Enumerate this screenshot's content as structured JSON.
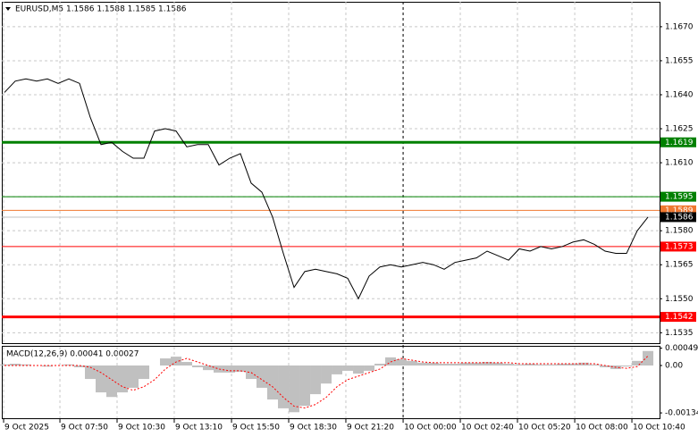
{
  "chart_data": [
    {
      "type": "line",
      "title": "EURUSD,M5  1.1586 1.1588 1.1585 1.1586",
      "series": [
        {
          "name": "EURUSD",
          "color": "#000000",
          "values": [
            1.1641,
            1.1646,
            1.1647,
            1.1646,
            1.1647,
            1.1645,
            1.1647,
            1.1645,
            1.163,
            1.1618,
            1.1619,
            1.1615,
            1.1612,
            1.1612,
            1.1624,
            1.1625,
            1.1624,
            1.1617,
            1.1618,
            1.1618,
            1.1609,
            1.1612,
            1.1614,
            1.1601,
            1.1597,
            1.1586,
            1.157,
            1.1555,
            1.1562,
            1.1563,
            1.1562,
            1.1561,
            1.1559,
            1.155,
            1.156,
            1.1564,
            1.1565,
            1.1564,
            1.1565,
            1.1566,
            1.1565,
            1.1563,
            1.1566,
            1.1567,
            1.1568,
            1.1571,
            1.1569,
            1.1567,
            1.1572,
            1.1571,
            1.1573,
            1.1572,
            1.1573,
            1.1575,
            1.1576,
            1.1574,
            1.1571,
            1.157,
            1.157,
            1.158,
            1.1586
          ]
        }
      ],
      "levels": [
        {
          "value": 1.1619,
          "color": "#008000"
        },
        {
          "value": 1.1595,
          "color": "#008000"
        },
        {
          "value": 1.1589,
          "color": "#f07830"
        },
        {
          "value": 1.1586,
          "color": "#000000"
        },
        {
          "value": 1.1573,
          "color": "#ff0000"
        },
        {
          "value": 1.1542,
          "color": "#ff0000"
        }
      ],
      "xlim": [
        -0.25,
        61.08
      ],
      "xticks": [
        {
          "value": -0.08,
          "label": "9 Oct 2025"
        },
        {
          "value": 5.17,
          "label": "9 Oct 07:50"
        },
        {
          "value": 10.5,
          "label": "9 Oct 10:30"
        },
        {
          "value": 15.83,
          "label": "9 Oct 13:10"
        },
        {
          "value": 21.17,
          "label": "9 Oct 15:50"
        },
        {
          "value": 26.5,
          "label": "9 Oct 18:30"
        },
        {
          "value": 31.83,
          "label": "9 Oct 21:20"
        },
        {
          "value": 37.17,
          "label": "10 Oct 00:00"
        },
        {
          "value": 42.5,
          "label": "10 Oct 02:40"
        },
        {
          "value": 47.83,
          "label": "10 Oct 05:20"
        },
        {
          "value": 53.17,
          "label": "10 Oct 08:00"
        },
        {
          "value": 58.5,
          "label": "10 Oct 10:40"
        }
      ],
      "ylim": [
        1.153,
        1.1681
      ],
      "yticks": [
        1.1535,
        {
          "value": 1.155,
          "label": "1.1550"
        },
        1.1565,
        {
          "value": 1.158,
          "label": "1.1580"
        },
        1.1595,
        {
          "value": 1.161,
          "label": "1.1610"
        },
        1.1625,
        {
          "value": 1.164,
          "label": "1.1640"
        },
        1.1655,
        {
          "value": 1.167,
          "label": "1.1670"
        }
      ],
      "grid": true
    },
    {
      "type": "macd",
      "title": "MACD(12,26,9) 0.00041 0.00027",
      "series": [
        {
          "name": "MACD",
          "color": "#c0c0c0",
          "values": [
            3e-05,
            5e-05,
            3e-05,
            0,
            -3e-05,
            0,
            3e-05,
            -5e-05,
            -0.00038,
            -0.00076,
            -0.00089,
            -0.00076,
            -0.00063,
            -0.00038,
            0,
            0.0002,
            0.00025,
            0.0001,
            -5e-05,
            -0.00013,
            -0.0002,
            -0.0002,
            -0.00018,
            -0.00038,
            -0.00063,
            -0.00096,
            -0.00121,
            -0.00132,
            -0.00114,
            -0.00081,
            -0.00051,
            -0.00025,
            -0.00015,
            -0.00023,
            -0.00015,
            5e-05,
            0.00023,
            0.00018,
            0.00013,
            8e-05,
            8e-05,
            5e-05,
            5e-05,
            8e-05,
            8e-05,
            0.0001,
            8e-05,
            5e-05,
            3e-05,
            5e-05,
            3e-05,
            3e-05,
            5e-05,
            5e-05,
            8e-05,
            3e-05,
            -5e-05,
            -0.0001,
            -3e-05,
            0.00013,
            0.00041
          ]
        },
        {
          "name": "Signal",
          "color": "#ff0000",
          "values": [
            0,
            0,
            0,
            0,
            0,
            0,
            0,
            0,
            -5e-05,
            -0.0002,
            -0.0004,
            -0.0006,
            -0.0007,
            -0.0006,
            -0.0004,
            -0.0001,
            0.0001,
            0.0002,
            0.0001,
            0,
            -0.0001,
            -0.00015,
            -0.00015,
            -0.0002,
            -0.0004,
            -0.0006,
            -0.0009,
            -0.00115,
            -0.0012,
            -0.0011,
            -0.0009,
            -0.0006,
            -0.0004,
            -0.0003,
            -0.0002,
            -0.0001,
            0.0001,
            0.0002,
            0.00015,
            0.0001,
            8e-05,
            8e-05,
            8e-05,
            8e-05,
            8e-05,
            8e-05,
            8e-05,
            8e-05,
            5e-05,
            5e-05,
            5e-05,
            5e-05,
            5e-05,
            5e-05,
            5e-05,
            5e-05,
            0,
            -5e-05,
            -8e-05,
            -3e-05,
            0.00027
          ]
        }
      ],
      "ylim": [
        -0.00149,
        0.00053
      ],
      "yticks": [
        0.00049,
        {
          "value": 0,
          "label": "0.00"
        },
        -0.00134
      ]
    }
  ]
}
